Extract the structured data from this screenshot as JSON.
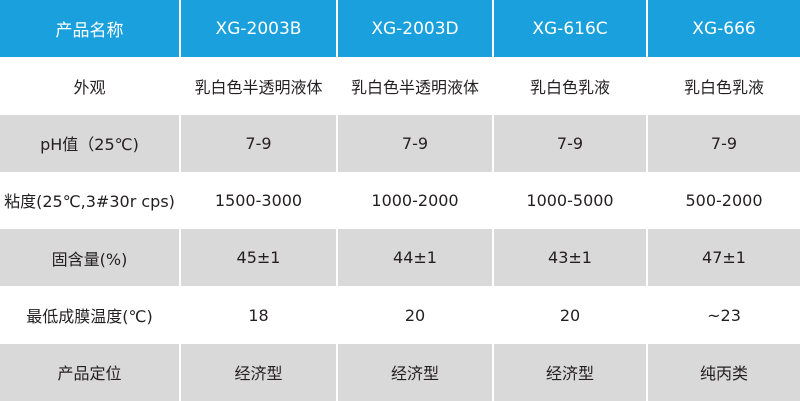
{
  "table": {
    "header": [
      "产品名称",
      "XG-2003B",
      "XG-2003D",
      "XG-616C",
      "XG-666"
    ],
    "rows": [
      [
        "外观",
        "乳白色半透明液体",
        "乳白色半透明液体",
        "乳白色乳液",
        "乳白色乳液"
      ],
      [
        "pH值（25℃)",
        "7-9",
        "7-9",
        "7-9",
        "7-9"
      ],
      [
        "粘度(25℃,3#30r cps)",
        "1500-3000",
        "1000-2000",
        "1000-5000",
        "500-2000"
      ],
      [
        "固含量(%)",
        "45±1",
        "44±1",
        "43±1",
        "47±1"
      ],
      [
        "最低成膜温度(℃)",
        "18",
        "20",
        "20",
        "~23"
      ],
      [
        "产品定位",
        "经济型",
        "经济型",
        "经济型",
        "纯丙类"
      ]
    ]
  }
}
